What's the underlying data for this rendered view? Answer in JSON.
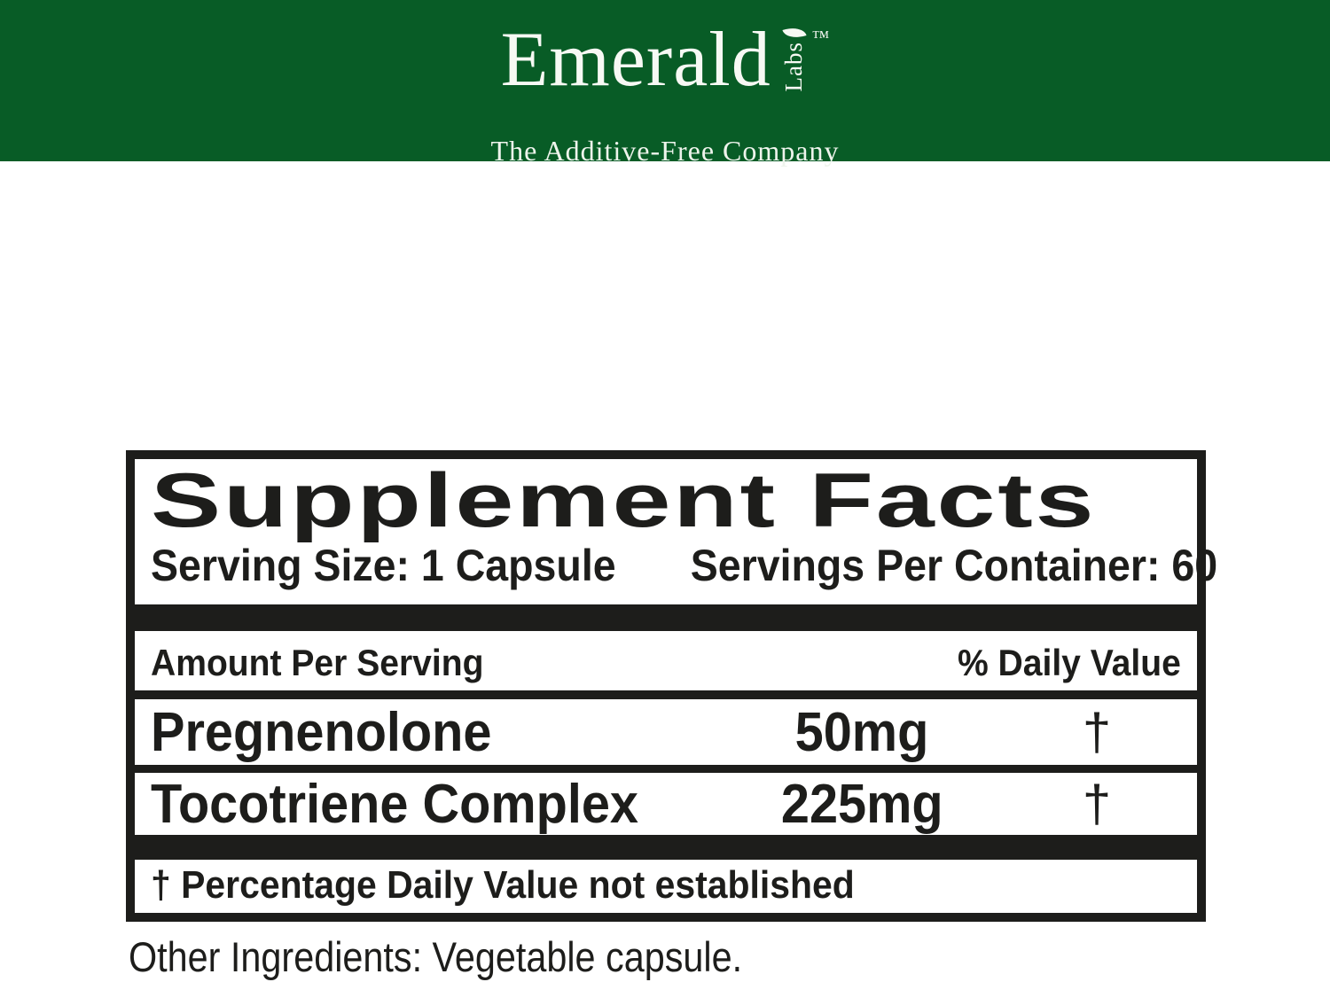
{
  "header": {
    "background_color": "#085C26",
    "logo": {
      "brand": "Emerald",
      "sub_brand": "Labs",
      "trademark": "™",
      "tagline": "The Additive-Free Company",
      "leaf_icon": "leaf-icon"
    }
  },
  "supplement_facts": {
    "title": "Supplement Facts",
    "serving_size": "Serving Size: 1 Capsule",
    "servings_per_container": "Servings Per Container: 60",
    "columns": {
      "amount_header": "Amount Per Serving",
      "daily_value_header": "% Daily Value"
    },
    "rows": [
      {
        "name": "Pregnenolone",
        "amount": "50mg",
        "daily_value": "†"
      },
      {
        "name": "Tocotriene Complex",
        "amount": "225mg",
        "daily_value": "†"
      }
    ],
    "footnote": "† Percentage Daily Value not established"
  },
  "other_ingredients": "Other Ingredients: Vegetable capsule.",
  "colors": {
    "header_green": "#085C26",
    "label_black": "#1D1D1B",
    "background": "#FFFFFF"
  }
}
